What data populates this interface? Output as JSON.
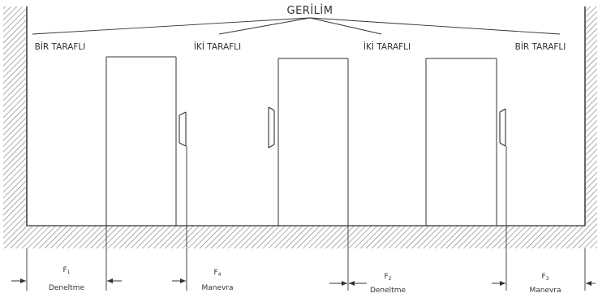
{
  "title": "GERİLİM",
  "sides": [
    {
      "id": "s1",
      "label": "BİR TARAFLI"
    },
    {
      "id": "s2",
      "label": "İKİ TARAFLI"
    },
    {
      "id": "s3",
      "label": "İKİ TARAFLI"
    },
    {
      "id": "s4",
      "label": "BİR TARAFLI"
    }
  ],
  "dimensions": [
    {
      "id": "d1",
      "symbol": "F",
      "index": "1",
      "name": "Deneltme"
    },
    {
      "id": "d2",
      "symbol": "F",
      "index": "4",
      "name": "Manevra"
    },
    {
      "id": "d3",
      "symbol": "F",
      "index": "2",
      "name": "Deneltme"
    },
    {
      "id": "d4",
      "symbol": "F",
      "index": "3",
      "name": "Manevra"
    }
  ]
}
